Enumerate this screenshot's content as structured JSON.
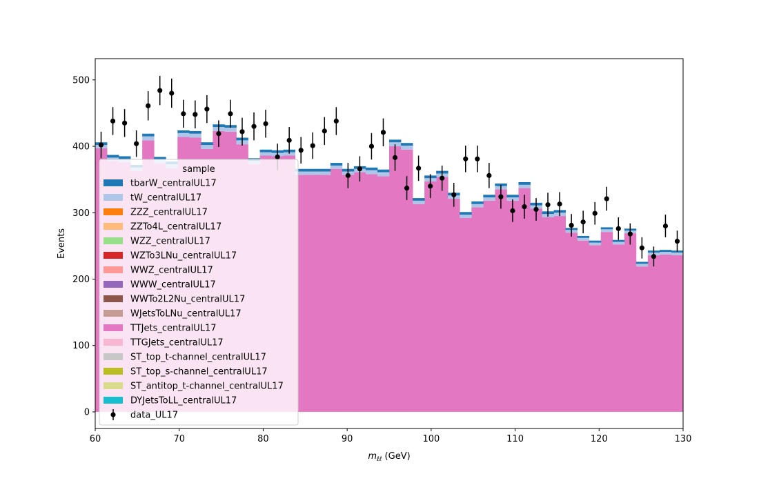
{
  "chart_data": {
    "type": "bar",
    "stacked": true,
    "histogram": true,
    "xlabel": "m_ℓℓ (GeV)",
    "xlabel_main": "m",
    "xlabel_sub": "ℓℓ",
    "xlabel_unit": " (GeV)",
    "ylabel": "Events",
    "xlim": [
      60,
      130
    ],
    "ylim": [
      -25,
      532
    ],
    "x_ticks": [
      "60",
      "70",
      "80",
      "90",
      "100",
      "110",
      "120",
      "130"
    ],
    "y_ticks": [
      "0",
      "100",
      "200",
      "300",
      "400",
      "500"
    ],
    "x_tick_values": [
      60,
      70,
      80,
      90,
      100,
      110,
      120,
      130
    ],
    "y_tick_values": [
      0,
      100,
      200,
      300,
      400,
      500
    ],
    "grid": false,
    "legend_title": "sample",
    "legend_position": "lower-left",
    "bin_edges": [
      60,
      61.4,
      62.8,
      64.2,
      65.6,
      67,
      68.4,
      69.8,
      71.2,
      72.6,
      74,
      75.4,
      76.8,
      78.2,
      79.6,
      81,
      82.4,
      83.8,
      85.2,
      86.6,
      88,
      89.4,
      90.8,
      92.2,
      93.6,
      95,
      96.4,
      97.8,
      99.2,
      100.6,
      102,
      103.4,
      104.8,
      106.2,
      107.6,
      109,
      110.4,
      111.8,
      113.2,
      114.6,
      116,
      117.4,
      118.8,
      120.2,
      121.6,
      123,
      124.4,
      125.8,
      127.2,
      128.6,
      130
    ],
    "series": [
      {
        "name": "tbarW_centralUL17",
        "color": "#1f77b4",
        "values": [
          4,
          4,
          4,
          4,
          4,
          4,
          4,
          4,
          4,
          4,
          4,
          4,
          4,
          4,
          4,
          4,
          4,
          4,
          4,
          4,
          4,
          4,
          4,
          4,
          4,
          4,
          4,
          4,
          4,
          4,
          4,
          4,
          4,
          4,
          4,
          4,
          4,
          4,
          4,
          4,
          3,
          3,
          3,
          3,
          3,
          3,
          3,
          3,
          3,
          3
        ]
      },
      {
        "name": "tW_centralUL17",
        "color": "#aec7e8",
        "values": [
          5,
          5,
          5,
          5,
          6,
          6,
          6,
          6,
          6,
          6,
          6,
          6,
          6,
          5,
          5,
          5,
          5,
          5,
          5,
          5,
          5,
          5,
          5,
          6,
          6,
          6,
          6,
          5,
          5,
          5,
          5,
          5,
          5,
          5,
          5,
          5,
          5,
          5,
          5,
          5,
          4,
          4,
          4,
          4,
          4,
          4,
          4,
          4,
          4,
          4
        ]
      },
      {
        "name": "ZZZ_centralUL17",
        "color": "#ff7f0e",
        "values": [
          0,
          0,
          0,
          0,
          0,
          0,
          0,
          0,
          0,
          0,
          0,
          0,
          0,
          0,
          0,
          0,
          0,
          0,
          0,
          0,
          0,
          0,
          0,
          0,
          0,
          0,
          0,
          0,
          0,
          0,
          0,
          0,
          0,
          0,
          0,
          0,
          0,
          0,
          0,
          0,
          0,
          0,
          0,
          0,
          0,
          0,
          0,
          0,
          0,
          0
        ]
      },
      {
        "name": "ZZTo4L_centralUL17",
        "color": "#ffbb78",
        "values": [
          0,
          0,
          0,
          0,
          0,
          0,
          0,
          0,
          0,
          0,
          0,
          0,
          0,
          0,
          0,
          0,
          0,
          0,
          0,
          0,
          0,
          0,
          0,
          0,
          0,
          0,
          0,
          0,
          0,
          0,
          0,
          0,
          0,
          0,
          0,
          0,
          0,
          0,
          0,
          0,
          0,
          0,
          0,
          0,
          0,
          0,
          0,
          0,
          0,
          0
        ]
      },
      {
        "name": "WZZ_centralUL17",
        "color": "#98df8a",
        "values": [
          0,
          0,
          0,
          0,
          0,
          0,
          0,
          0,
          0,
          0,
          0,
          0,
          0,
          0,
          0,
          0,
          0,
          0,
          0,
          0,
          0,
          0,
          0,
          0,
          0,
          0,
          0,
          0,
          0,
          0,
          0,
          0,
          0,
          0,
          0,
          0,
          0,
          0,
          0,
          0,
          0,
          0,
          0,
          0,
          0,
          0,
          0,
          0,
          0,
          0
        ]
      },
      {
        "name": "WZTo3LNu_centralUL17",
        "color": "#d62728",
        "values": [
          0,
          0,
          0,
          0,
          0,
          0,
          0,
          0,
          0,
          0,
          0,
          0,
          0,
          0,
          0,
          0,
          0,
          0,
          0,
          0,
          0,
          0,
          0,
          0,
          0,
          0,
          0,
          0,
          0,
          0,
          0,
          0,
          0,
          0,
          0,
          0,
          0,
          0,
          0,
          0,
          0,
          0,
          0,
          0,
          0,
          0,
          0,
          0,
          0,
          0
        ]
      },
      {
        "name": "WWZ_centralUL17",
        "color": "#ff9896",
        "values": [
          0,
          0,
          0,
          0,
          0,
          0,
          0,
          0,
          0,
          0,
          0,
          0,
          0,
          0,
          0,
          0,
          0,
          0,
          0,
          0,
          0,
          0,
          0,
          0,
          0,
          0,
          0,
          0,
          0,
          0,
          0,
          0,
          0,
          0,
          0,
          0,
          0,
          0,
          0,
          0,
          0,
          0,
          0,
          0,
          0,
          0,
          0,
          0,
          0,
          0
        ]
      },
      {
        "name": "WWW_centralUL17",
        "color": "#9467bd",
        "values": [
          0,
          0,
          0,
          0,
          0,
          0,
          0,
          0,
          0,
          0,
          0,
          0,
          0,
          0,
          0,
          0,
          0,
          0,
          0,
          0,
          0,
          0,
          0,
          0,
          0,
          0,
          0,
          0,
          0,
          0,
          0,
          0,
          0,
          0,
          0,
          0,
          0,
          0,
          0,
          0,
          0,
          0,
          0,
          0,
          0,
          0,
          0,
          0,
          0,
          0
        ]
      },
      {
        "name": "WWTo2L2Nu_centralUL17",
        "color": "#8c564b",
        "values": [
          0,
          0,
          0,
          0,
          0,
          0,
          0,
          0,
          0,
          0,
          0,
          0,
          0,
          0,
          0,
          0,
          0,
          0,
          0,
          0,
          0,
          0,
          0,
          0,
          0,
          0,
          0,
          0,
          0,
          0,
          0,
          0,
          0,
          0,
          0,
          0,
          0,
          0,
          0,
          0,
          0,
          0,
          0,
          0,
          0,
          0,
          0,
          0,
          0,
          0
        ]
      },
      {
        "name": "WJetsToLNu_centralUL17",
        "color": "#c49c94",
        "values": [
          0,
          0,
          0,
          0,
          0,
          0,
          0,
          0,
          0,
          0,
          0,
          0,
          0,
          0,
          0,
          0,
          0,
          0,
          0,
          0,
          0,
          0,
          0,
          0,
          0,
          0,
          0,
          0,
          0,
          0,
          0,
          0,
          0,
          0,
          0,
          0,
          0,
          0,
          0,
          0,
          0,
          0,
          0,
          0,
          0,
          0,
          0,
          0,
          0,
          0
        ]
      },
      {
        "name": "TTJets_centralUL17",
        "color": "#e377c2",
        "values": [
          397,
          378,
          376,
          363,
          409,
          374,
          367,
          414,
          413,
          396,
          423,
          422,
          403,
          373,
          386,
          385,
          386,
          357,
          357,
          357,
          366,
          357,
          361,
          358,
          355,
          400,
          395,
          313,
          347,
          354,
          321,
          292,
          308,
          318,
          335,
          318,
          337,
          306,
          293,
          295,
          270,
          258,
          251,
          271,
          252,
          269,
          219,
          236,
          237,
          236
        ]
      },
      {
        "name": "TTGJets_centralUL17",
        "color": "#f7b6d2",
        "values": [
          0,
          0,
          0,
          0,
          0,
          0,
          0,
          0,
          0,
          0,
          0,
          0,
          0,
          0,
          0,
          0,
          0,
          0,
          0,
          0,
          0,
          0,
          0,
          0,
          0,
          0,
          0,
          0,
          0,
          0,
          0,
          0,
          0,
          0,
          0,
          0,
          0,
          0,
          0,
          0,
          0,
          0,
          0,
          0,
          0,
          0,
          0,
          0,
          0,
          0
        ]
      },
      {
        "name": "ST_top_t-channel_centralUL17",
        "color": "#c7c7c7",
        "values": [
          0,
          0,
          0,
          0,
          0,
          0,
          0,
          0,
          0,
          0,
          0,
          0,
          0,
          0,
          0,
          0,
          0,
          0,
          0,
          0,
          0,
          0,
          0,
          0,
          0,
          0,
          0,
          0,
          0,
          0,
          0,
          0,
          0,
          0,
          0,
          0,
          0,
          0,
          0,
          0,
          0,
          0,
          0,
          0,
          0,
          0,
          0,
          0,
          0,
          0
        ]
      },
      {
        "name": "ST_top_s-channel_centralUL17",
        "color": "#bcbd22",
        "values": [
          0,
          0,
          0,
          0,
          0,
          0,
          0,
          0,
          0,
          0,
          0,
          0,
          0,
          0,
          0,
          0,
          0,
          0,
          0,
          0,
          0,
          0,
          0,
          0,
          0,
          0,
          0,
          0,
          0,
          0,
          0,
          0,
          0,
          0,
          0,
          0,
          0,
          0,
          0,
          0,
          0,
          0,
          0,
          0,
          0,
          0,
          0,
          0,
          0,
          0
        ]
      },
      {
        "name": "ST_antitop_t-channel_centralUL17",
        "color": "#dbdb8d",
        "values": [
          0,
          0,
          0,
          0,
          0,
          0,
          0,
          0,
          0,
          0,
          0,
          0,
          0,
          0,
          0,
          0,
          0,
          0,
          0,
          0,
          0,
          0,
          0,
          0,
          0,
          0,
          0,
          0,
          0,
          0,
          0,
          0,
          0,
          0,
          0,
          0,
          0,
          0,
          0,
          0,
          0,
          0,
          0,
          0,
          0,
          0,
          0,
          0,
          0,
          0
        ]
      },
      {
        "name": "DYJetsToLL_centralUL17",
        "color": "#17becf",
        "values": [
          0,
          0,
          0,
          0,
          0,
          0,
          0,
          0,
          0,
          0,
          0,
          0,
          0,
          0,
          0,
          0,
          0,
          0,
          0,
          0,
          0,
          0,
          0,
          0,
          0,
          0,
          0,
          0,
          0,
          0,
          0,
          0,
          0,
          0,
          0,
          0,
          0,
          0,
          0,
          0,
          0,
          0,
          0,
          0,
          0,
          0,
          0,
          0,
          0,
          0
        ]
      }
    ],
    "data": {
      "name": "data_UL17",
      "color": "#000000",
      "x": [
        60.7,
        62.1,
        63.5,
        64.9,
        66.3,
        67.7,
        69.1,
        70.5,
        71.9,
        73.3,
        74.7,
        76.1,
        77.5,
        78.9,
        80.3,
        81.7,
        83.1,
        84.5,
        85.9,
        87.3,
        88.7,
        90.1,
        91.5,
        92.9,
        94.3,
        95.7,
        97.1,
        98.5,
        99.9,
        101.3,
        102.7,
        104.1,
        105.5,
        106.9,
        108.3,
        109.7,
        111.1,
        112.5,
        113.9,
        115.3,
        116.7,
        118.1,
        119.5,
        120.9,
        122.3,
        123.7,
        125.1,
        126.5,
        127.9,
        129.3
      ],
      "y": [
        402,
        438,
        435,
        404,
        461,
        484,
        480,
        449,
        448,
        456,
        419,
        449,
        422,
        430,
        434,
        384,
        409,
        394,
        401,
        423,
        438,
        356,
        366,
        400,
        421,
        383,
        337,
        367,
        340,
        352,
        327,
        381,
        381,
        356,
        324,
        303,
        309,
        305,
        312,
        313,
        281,
        286,
        299,
        321,
        276,
        268,
        247,
        234,
        280,
        257
      ],
      "err": [
        20,
        21,
        21,
        20,
        22,
        22,
        22,
        21,
        21,
        21,
        20,
        21,
        21,
        21,
        21,
        20,
        20,
        20,
        20,
        21,
        21,
        19,
        19,
        20,
        21,
        20,
        18,
        19,
        18,
        19,
        18,
        20,
        20,
        19,
        18,
        17,
        18,
        17,
        18,
        18,
        17,
        17,
        17,
        18,
        17,
        16,
        16,
        15,
        17,
        16
      ]
    }
  }
}
